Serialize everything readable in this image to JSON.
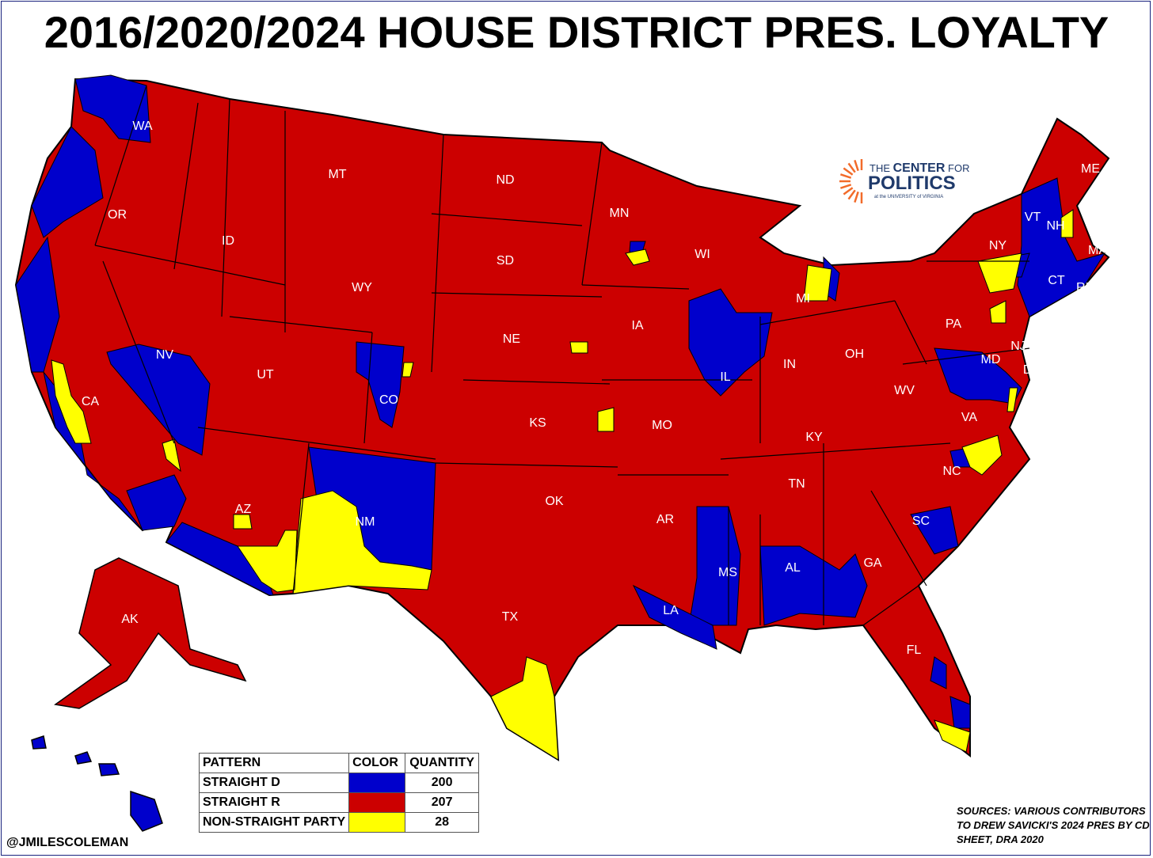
{
  "title": "2016/2020/2024 HOUSE DISTRICT PRES. LOYALTY",
  "colors": {
    "straight_d": "#0000cc",
    "straight_r": "#cc0000",
    "non_straight": "#ffff00"
  },
  "states": [
    "WA",
    "OR",
    "CA",
    "NV",
    "ID",
    "MT",
    "WY",
    "UT",
    "CO",
    "AZ",
    "NM",
    "ND",
    "SD",
    "NE",
    "KS",
    "OK",
    "TX",
    "MN",
    "IA",
    "MO",
    "AR",
    "LA",
    "WI",
    "IL",
    "MI",
    "IN",
    "OH",
    "KY",
    "TN",
    "MS",
    "AL",
    "GA",
    "FL",
    "SC",
    "NC",
    "VA",
    "WV",
    "PA",
    "NY",
    "VT",
    "NH",
    "ME",
    "MA",
    "CT",
    "RI",
    "NJ",
    "DE",
    "MD",
    "AK",
    "HI"
  ],
  "legend": {
    "headers": [
      "PATTERN",
      "COLOR",
      "QUANTITY"
    ],
    "rows": [
      {
        "pattern": "STRAIGHT D",
        "color": "#0000cc",
        "quantity": "200"
      },
      {
        "pattern": "STRAIGHT R",
        "color": "#cc0000",
        "quantity": "207"
      },
      {
        "pattern": "NON-STRAIGHT PARTY",
        "color": "#ffff00",
        "quantity": "28"
      }
    ]
  },
  "logo": {
    "line1a": "THE ",
    "line1b": "CENTER",
    "line1c": " FOR",
    "line2": "POLITICS",
    "line3": "at the UNIVERSITY of VIRGINIA"
  },
  "handle": "@JMILESCOLEMAN",
  "sources": "SOURCES: VARIOUS CONTRIBUTORS TO DREW SAVICKI'S 2024 PRES BY CD SHEET, DRA 2020"
}
